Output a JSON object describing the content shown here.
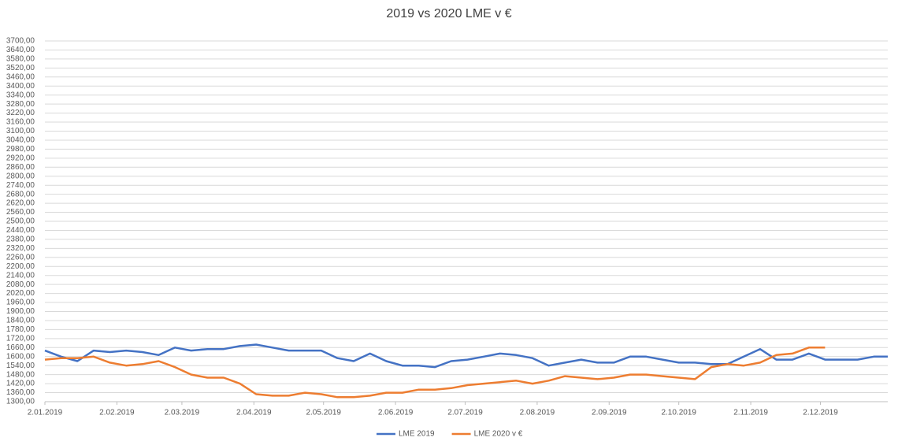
{
  "chart_data": {
    "type": "line",
    "title": "2019 vs 2020 LME v €",
    "x": [
      "2019-01-02",
      "2019-01-09",
      "2019-01-16",
      "2019-01-23",
      "2019-01-30",
      "2019-02-06",
      "2019-02-13",
      "2019-02-20",
      "2019-02-27",
      "2019-03-06",
      "2019-03-13",
      "2019-03-20",
      "2019-03-27",
      "2019-04-03",
      "2019-04-10",
      "2019-04-17",
      "2019-04-24",
      "2019-05-01",
      "2019-05-08",
      "2019-05-15",
      "2019-05-22",
      "2019-05-29",
      "2019-06-05",
      "2019-06-12",
      "2019-06-19",
      "2019-06-26",
      "2019-07-03",
      "2019-07-10",
      "2019-07-17",
      "2019-07-24",
      "2019-07-31",
      "2019-08-07",
      "2019-08-14",
      "2019-08-21",
      "2019-08-28",
      "2019-09-04",
      "2019-09-11",
      "2019-09-18",
      "2019-09-25",
      "2019-10-02",
      "2019-10-09",
      "2019-10-16",
      "2019-10-23",
      "2019-10-30",
      "2019-11-06",
      "2019-11-13",
      "2019-11-20",
      "2019-11-27",
      "2019-12-04",
      "2019-12-11",
      "2019-12-18",
      "2019-12-25",
      "2019-12-31"
    ],
    "series": [
      {
        "name": "LME 2019",
        "color": "#4472c4",
        "values": [
          1640,
          1600,
          1570,
          1640,
          1630,
          1640,
          1630,
          1610,
          1660,
          1640,
          1650,
          1650,
          1670,
          1680,
          1660,
          1640,
          1640,
          1640,
          1590,
          1570,
          1620,
          1570,
          1540,
          1540,
          1530,
          1570,
          1580,
          1600,
          1620,
          1610,
          1590,
          1540,
          1560,
          1580,
          1560,
          1560,
          1600,
          1600,
          1580,
          1560,
          1560,
          1550,
          1550,
          1600,
          1650,
          1580,
          1580,
          1620,
          1580,
          1580,
          1580,
          1600,
          1600
        ]
      },
      {
        "name": "LME 2020 v €",
        "color": "#ed7d31",
        "values": [
          1580,
          1590,
          1590,
          1600,
          1560,
          1540,
          1550,
          1570,
          1530,
          1480,
          1460,
          1460,
          1420,
          1350,
          1340,
          1340,
          1360,
          1350,
          1330,
          1330,
          1340,
          1360,
          1360,
          1380,
          1380,
          1390,
          1410,
          1420,
          1430,
          1440,
          1420,
          1440,
          1470,
          1460,
          1450,
          1460,
          1480,
          1480,
          1470,
          1460,
          1450,
          1530,
          1550,
          1540,
          1560,
          1610,
          1620,
          1660,
          1660,
          null,
          null,
          null,
          null
        ]
      }
    ],
    "xlim": [
      "2019-01-02",
      "2019-12-31"
    ],
    "xticks": [
      {
        "value": "2019-01-02",
        "label": "2.01.2019"
      },
      {
        "value": "2019-02-02",
        "label": "2.02.2019"
      },
      {
        "value": "2019-03-02",
        "label": "2.03.2019"
      },
      {
        "value": "2019-04-02",
        "label": "2.04.2019"
      },
      {
        "value": "2019-05-02",
        "label": "2.05.2019"
      },
      {
        "value": "2019-06-02",
        "label": "2.06.2019"
      },
      {
        "value": "2019-07-02",
        "label": "2.07.2019"
      },
      {
        "value": "2019-08-02",
        "label": "2.08.2019"
      },
      {
        "value": "2019-09-02",
        "label": "2.09.2019"
      },
      {
        "value": "2019-10-02",
        "label": "2.10.2019"
      },
      {
        "value": "2019-11-02",
        "label": "2.11.2019"
      },
      {
        "value": "2019-12-02",
        "label": "2.12.2019"
      }
    ],
    "ylim": [
      1300,
      3700
    ],
    "yticks": [
      {
        "value": 1300,
        "label": "1300,00"
      },
      {
        "value": 1360,
        "label": "1360,00"
      },
      {
        "value": 1420,
        "label": "1420,00"
      },
      {
        "value": 1480,
        "label": "1480,00"
      },
      {
        "value": 1540,
        "label": "1540,00"
      },
      {
        "value": 1600,
        "label": "1600,00"
      },
      {
        "value": 1660,
        "label": "1660,00"
      },
      {
        "value": 1720,
        "label": "1720,00"
      },
      {
        "value": 1780,
        "label": "1780,00"
      },
      {
        "value": 1840,
        "label": "1840,00"
      },
      {
        "value": 1900,
        "label": "1900,00"
      },
      {
        "value": 1960,
        "label": "1960,00"
      },
      {
        "value": 2020,
        "label": "2020,00"
      },
      {
        "value": 2080,
        "label": "2080,00"
      },
      {
        "value": 2140,
        "label": "2140,00"
      },
      {
        "value": 2200,
        "label": "2200,00"
      },
      {
        "value": 2260,
        "label": "2260,00"
      },
      {
        "value": 2320,
        "label": "2320,00"
      },
      {
        "value": 2380,
        "label": "2380,00"
      },
      {
        "value": 2440,
        "label": "2440,00"
      },
      {
        "value": 2500,
        "label": "2500,00"
      },
      {
        "value": 2560,
        "label": "2560,00"
      },
      {
        "value": 2620,
        "label": "2620,00"
      },
      {
        "value": 2680,
        "label": "2680,00"
      },
      {
        "value": 2740,
        "label": "2740,00"
      },
      {
        "value": 2800,
        "label": "2800,00"
      },
      {
        "value": 2860,
        "label": "2860,00"
      },
      {
        "value": 2920,
        "label": "2920,00"
      },
      {
        "value": 2980,
        "label": "2980,00"
      },
      {
        "value": 3040,
        "label": "3040,00"
      },
      {
        "value": 3100,
        "label": "3100,00"
      },
      {
        "value": 3160,
        "label": "3160,00"
      },
      {
        "value": 3220,
        "label": "3220,00"
      },
      {
        "value": 3280,
        "label": "3280,00"
      },
      {
        "value": 3340,
        "label": "3340,00"
      },
      {
        "value": 3400,
        "label": "3400,00"
      },
      {
        "value": 3460,
        "label": "3460,00"
      },
      {
        "value": 3520,
        "label": "3520,00"
      },
      {
        "value": 3580,
        "label": "3580,00"
      },
      {
        "value": 3640,
        "label": "3640,00"
      },
      {
        "value": 3700,
        "label": "3700,00"
      }
    ],
    "grid": true,
    "legend": "bottom"
  }
}
